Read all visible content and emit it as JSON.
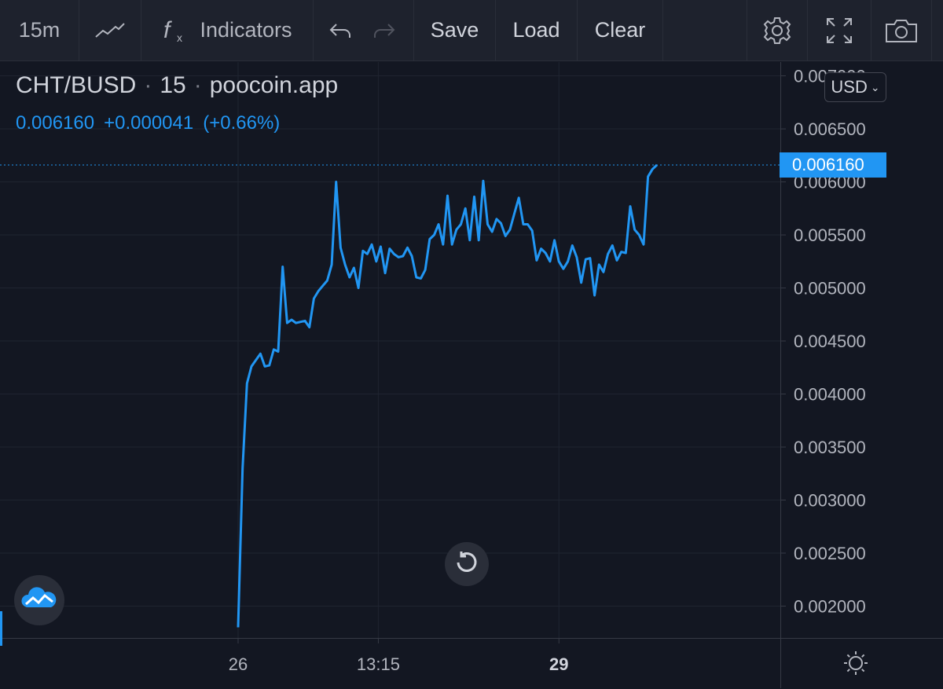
{
  "toolbar": {
    "interval": "15m",
    "indicators_label": "Indicators",
    "save_label": "Save",
    "load_label": "Load",
    "clear_label": "Clear"
  },
  "legend": {
    "symbol": "CHT/BUSD",
    "interval": "15",
    "source": "poocoin.app",
    "last_price": "0.006160",
    "change": "+0.000041",
    "change_pct": "(+0.66%)"
  },
  "currency": {
    "label": "USD"
  },
  "last_price_tag": "0.006160",
  "colors": {
    "background": "#131722",
    "line": "#2196f3",
    "grid": "#1f2430",
    "text": "#d1d4dc",
    "axis_text": "#b2b5be"
  },
  "chart_data": {
    "type": "line",
    "series": [
      {
        "name": "",
        "values": [
          0.0018,
          0.0033,
          0.0041,
          0.00426,
          0.00432,
          0.00438,
          0.00426,
          0.00427,
          0.00442,
          0.0044,
          0.0052,
          0.00467,
          0.0047,
          0.00467,
          0.00468,
          0.00469,
          0.00463,
          0.0049,
          0.00497,
          0.00502,
          0.00507,
          0.00522,
          0.006,
          0.00538,
          0.00522,
          0.0051,
          0.00519,
          0.005,
          0.00535,
          0.00532,
          0.00541,
          0.00525,
          0.00539,
          0.00514,
          0.00537,
          0.00532,
          0.00529,
          0.0053,
          0.00538,
          0.0053,
          0.0051,
          0.00509,
          0.00517,
          0.00546,
          0.0055,
          0.0056,
          0.00541,
          0.00587,
          0.00541,
          0.00555,
          0.0056,
          0.00575,
          0.00545,
          0.00586,
          0.00545,
          0.00601,
          0.0056,
          0.00553,
          0.00565,
          0.00561,
          0.00549,
          0.00555,
          0.0057,
          0.00585,
          0.0056,
          0.0056,
          0.00554,
          0.00526,
          0.00537,
          0.00533,
          0.00525,
          0.00545,
          0.00525,
          0.00518,
          0.00525,
          0.0054,
          0.00529,
          0.00505,
          0.00527,
          0.00528,
          0.00493,
          0.00522,
          0.00515,
          0.00532,
          0.0054,
          0.00526,
          0.00534,
          0.00533,
          0.00577,
          0.00555,
          0.0055,
          0.00541,
          0.00605,
          0.00612,
          0.00616
        ]
      }
    ],
    "x_ticks": [
      {
        "label": "26",
        "bold": false,
        "index": 0
      },
      {
        "label": "13:15",
        "bold": false,
        "index": 29
      },
      {
        "label": "29",
        "bold": true,
        "index": 72
      }
    ],
    "y_ticks": [
      "0.002000",
      "0.002500",
      "0.003000",
      "0.003500",
      "0.004000",
      "0.004500",
      "0.005000",
      "0.005500",
      "0.006000",
      "0.006500",
      "0.007000"
    ],
    "ylim": [
      0.0017,
      0.00713
    ],
    "last_value": 0.00616,
    "grid": true
  }
}
